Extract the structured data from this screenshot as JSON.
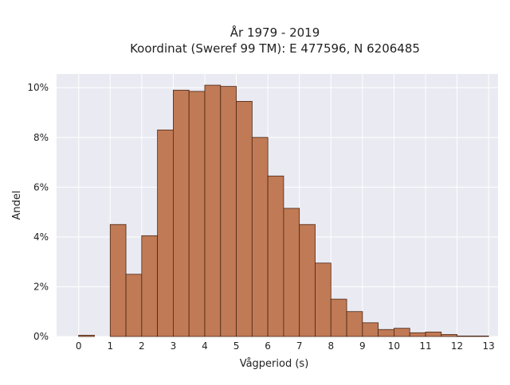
{
  "chart_data": {
    "type": "bar",
    "title": "År 1979 - 2019",
    "subtitle": "Koordinat (Sweref 99 TM): E 477596, N 6206485",
    "xlabel": "Vågperiod (s)",
    "ylabel": "Andel",
    "bin_width": 0.5,
    "x": [
      0,
      0.5,
      1,
      1.5,
      2,
      2.5,
      3,
      3.5,
      4,
      4.5,
      5,
      5.5,
      6,
      6.5,
      7,
      7.5,
      8,
      8.5,
      9,
      9.5,
      10,
      10.5,
      11,
      11.5,
      12,
      12.5
    ],
    "values": [
      0.05,
      0,
      4.5,
      2.5,
      4.05,
      8.3,
      9.9,
      9.85,
      10.1,
      10.05,
      9.45,
      8.0,
      6.45,
      5.15,
      4.5,
      2.95,
      1.5,
      1.0,
      0.55,
      0.28,
      0.33,
      0.15,
      0.18,
      0.08,
      0.02,
      0.02
    ],
    "xlim": [
      -0.7,
      13.3
    ],
    "ylim": [
      0,
      10.55
    ],
    "xticks": [
      0,
      1,
      2,
      3,
      4,
      5,
      6,
      7,
      8,
      9,
      10,
      11,
      12,
      13
    ],
    "yticks": [
      0,
      2,
      4,
      6,
      8,
      10
    ],
    "ytick_labels": [
      "0%",
      "2%",
      "4%",
      "6%",
      "8%",
      "10%"
    ],
    "grid": true,
    "colors": {
      "bar_fill": "#c07a55",
      "bar_edge": "#4a2614",
      "plot_bg": "#eaeaf2",
      "grid": "#ffffff"
    }
  }
}
